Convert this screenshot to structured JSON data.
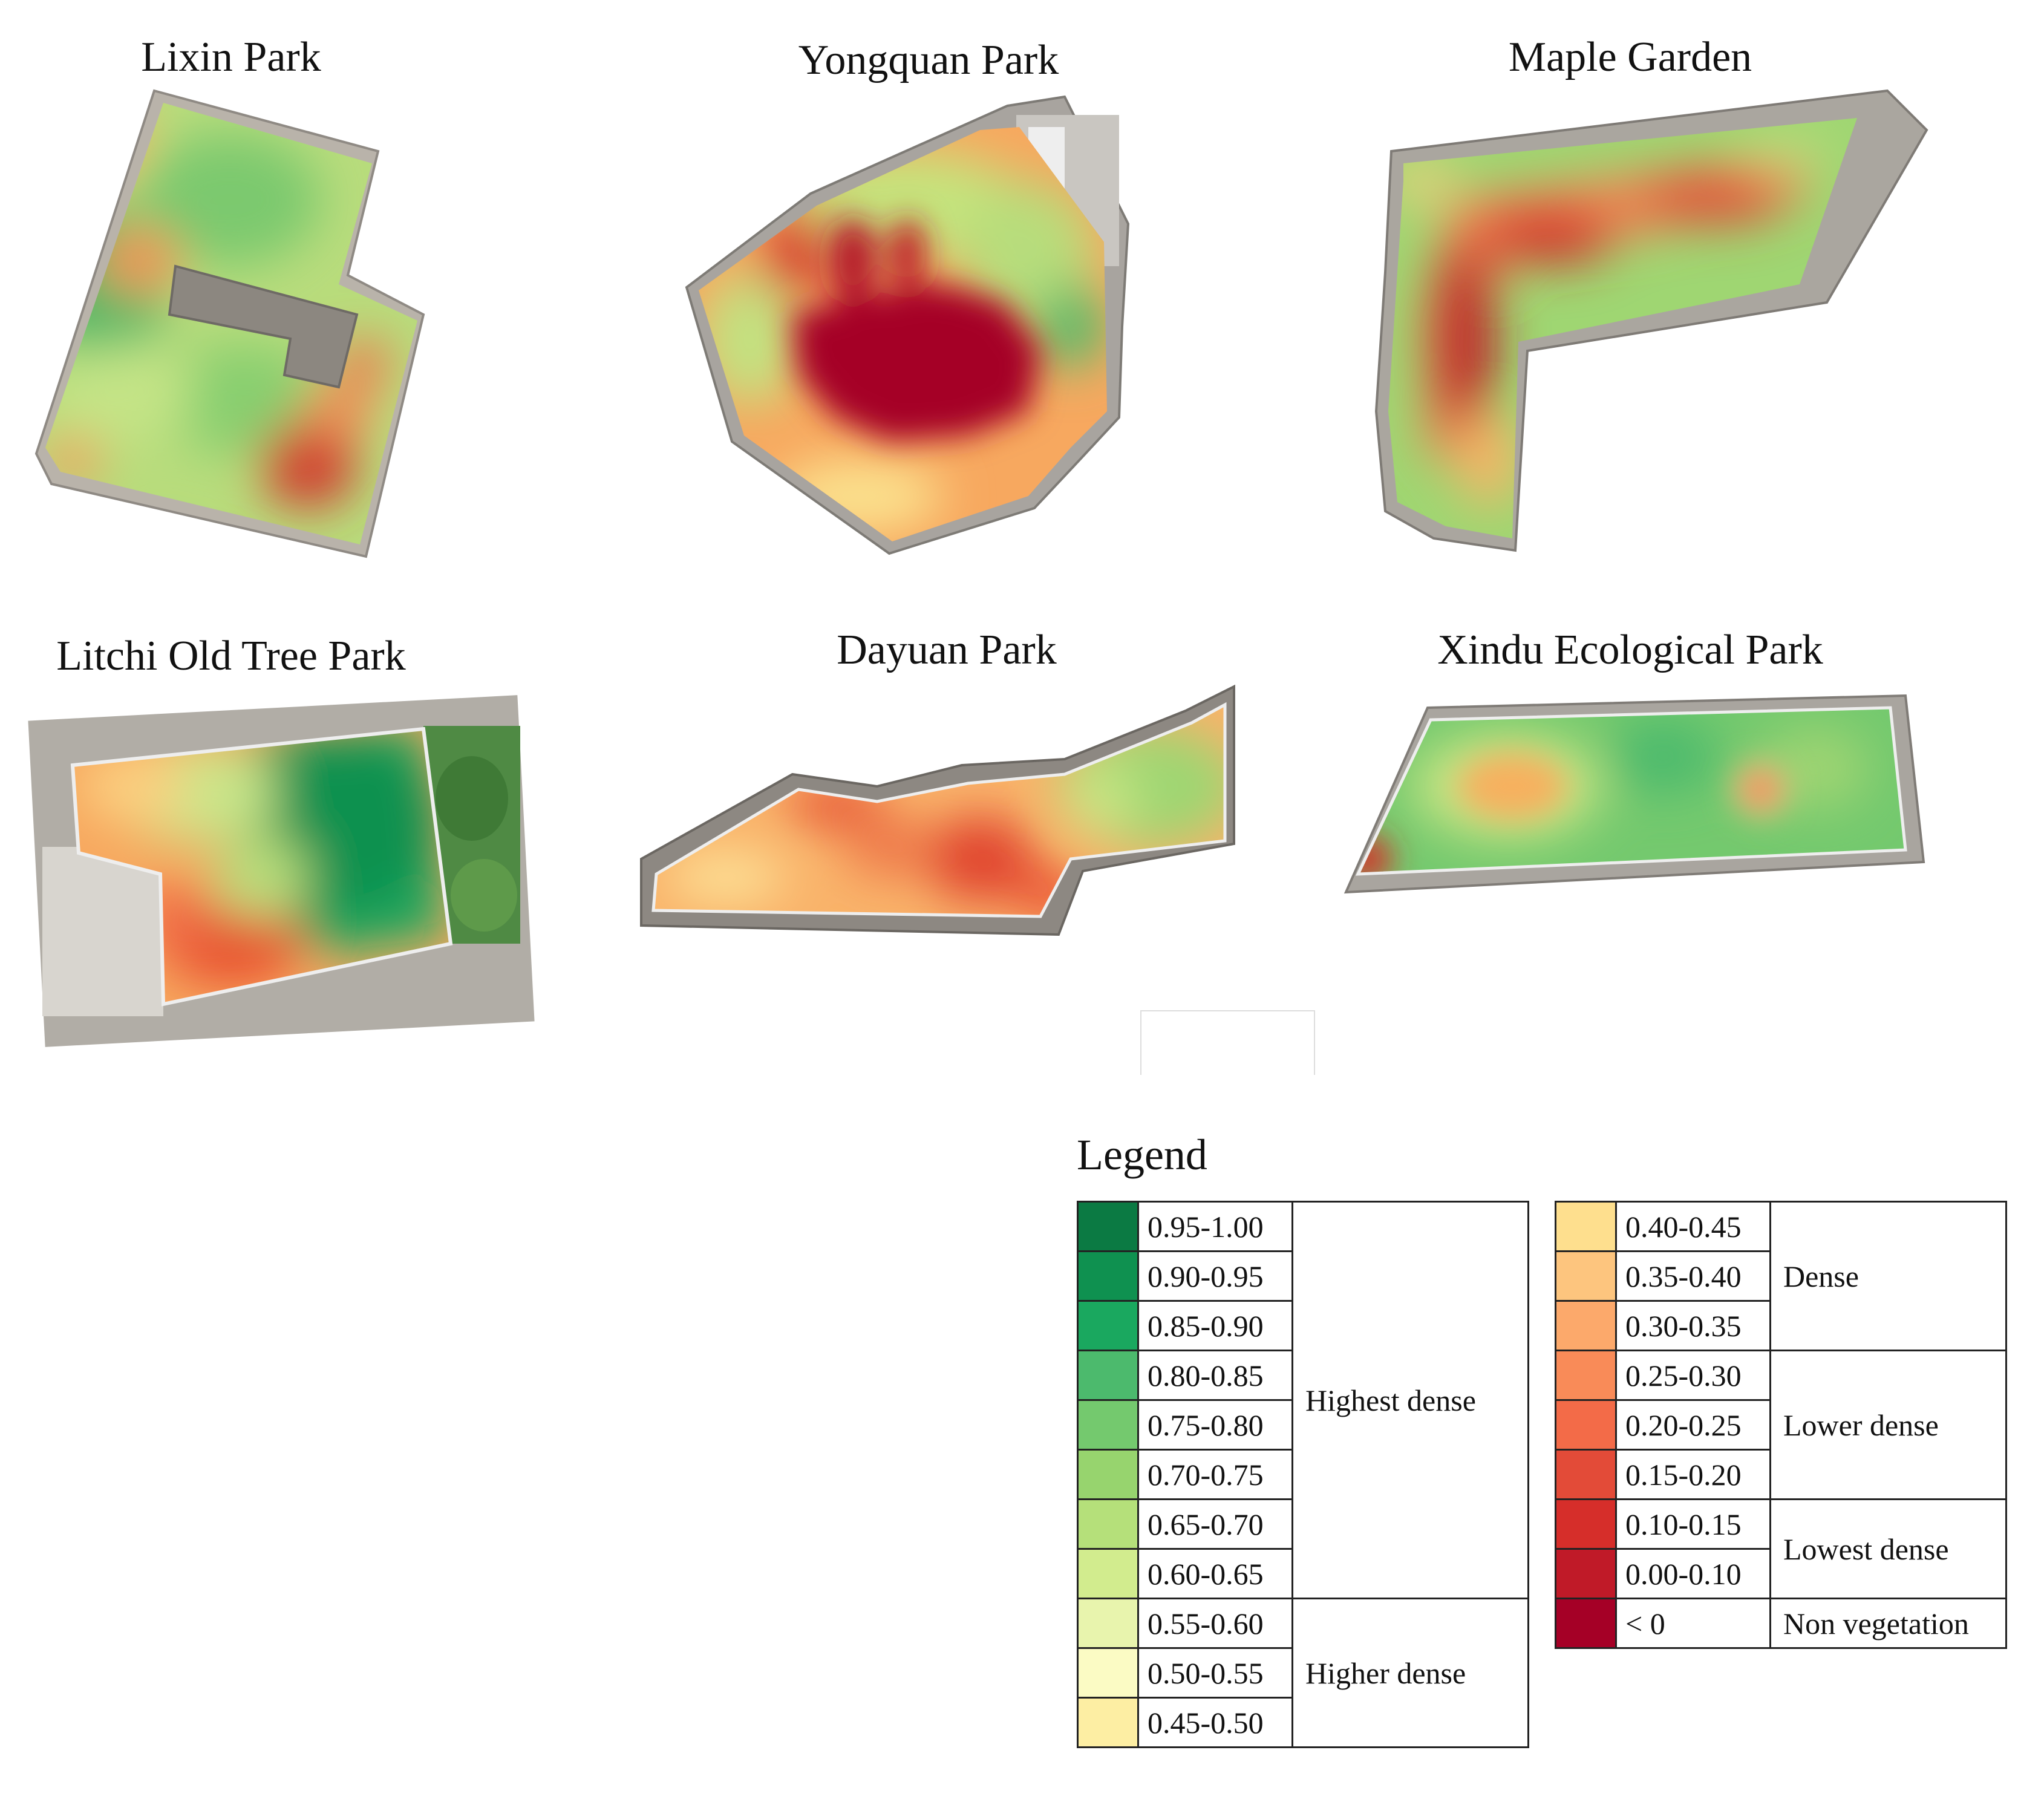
{
  "parks": [
    {
      "id": "lixin",
      "name": "Lixin Park"
    },
    {
      "id": "yongquan",
      "name": "Yongquan Park"
    },
    {
      "id": "maple",
      "name": "Maple Garden"
    },
    {
      "id": "litchi",
      "name": "Litchi Old Tree Park"
    },
    {
      "id": "dayuan",
      "name": "Dayuan Park"
    },
    {
      "id": "xindu",
      "name": "Xindu Ecological Park"
    }
  ],
  "legend": {
    "title": "Legend",
    "left": [
      {
        "range": "0.95-1.00",
        "color": "#0b7a43"
      },
      {
        "range": "0.90-0.95",
        "color": "#0f9150"
      },
      {
        "range": "0.85-0.90",
        "color": "#1aa85f"
      },
      {
        "range": "0.80-0.85",
        "color": "#4cba6d"
      },
      {
        "range": "0.75-0.80",
        "color": "#74c96e"
      },
      {
        "range": "0.70-0.75",
        "color": "#97d46e"
      },
      {
        "range": "0.65-0.70",
        "color": "#b5e07a"
      },
      {
        "range": "0.60-0.65",
        "color": "#d2ec8e"
      },
      {
        "range": "0.55-0.60",
        "color": "#e8f4ad"
      },
      {
        "range": "0.50-0.55",
        "color": "#fbfbc4"
      },
      {
        "range": "0.45-0.50",
        "color": "#fdeea3"
      }
    ],
    "left_classes": [
      "Highest dense",
      "Higher dense"
    ],
    "right": [
      {
        "range": "0.40-0.45",
        "color": "#fedf8e"
      },
      {
        "range": "0.35-0.40",
        "color": "#fdc57e"
      },
      {
        "range": "0.30-0.35",
        "color": "#fca96b"
      },
      {
        "range": "0.25-0.30",
        "color": "#f98b58"
      },
      {
        "range": "0.20-0.25",
        "color": "#f36b48"
      },
      {
        "range": "0.15-0.20",
        "color": "#e34b38"
      },
      {
        "range": "0.10-0.15",
        "color": "#d62e2a"
      },
      {
        "range": "0.00-0.10",
        "color": "#c01a28"
      },
      {
        "range": "< 0",
        "color": "#a50026"
      }
    ],
    "right_classes": [
      "Dense",
      "Lower dense",
      "Lowest dense",
      "Non vegetation"
    ]
  }
}
